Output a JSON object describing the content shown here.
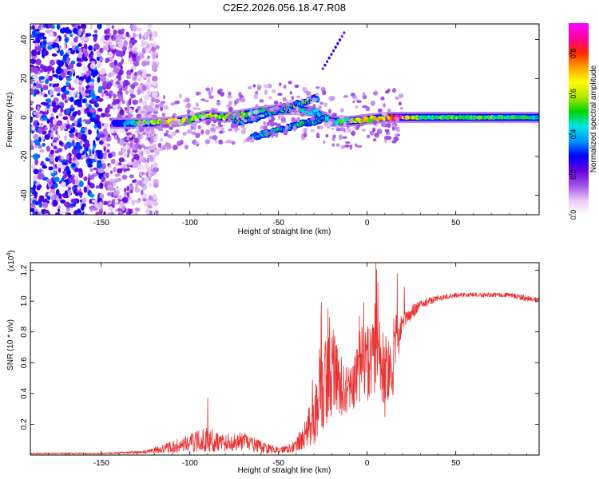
{
  "figure": {
    "title": "C2E2.2026.056.18.47.R08"
  },
  "chart_data": [
    {
      "type": "heatmap",
      "name": "spectrogram",
      "xlabel": "Height of straight line (km)",
      "ylabel": "Frequency (Hz)",
      "xlim": [
        -190,
        97
      ],
      "ylim": [
        -50,
        48
      ],
      "xticks": [
        -150,
        -100,
        -50,
        0,
        50
      ],
      "yticks": [
        -40,
        -20,
        0,
        20,
        40
      ],
      "colorbar": {
        "label": "Normalized spectral amplitude",
        "range": [
          0,
          0.95
        ],
        "ticks": [
          0.0,
          0.2,
          0.4,
          0.6,
          0.8
        ],
        "colors": [
          "#ffffff",
          "#e6c8f5",
          "#a050e6",
          "#6400e0",
          "#0000ff",
          "#0096ff",
          "#00e6e6",
          "#00d200",
          "#b4e600",
          "#ffff00",
          "#ffa000",
          "#ff2800",
          "#ff00a0",
          "#ff00ff"
        ]
      },
      "features": {
        "noise_region_x": [
          -190,
          -130
        ],
        "main_ridge": {
          "x": [
            -143,
            -125,
            -110,
            -100,
            -90,
            -80,
            -70,
            -60,
            -50,
            -40,
            -30,
            -20,
            -10,
            0,
            10,
            20,
            30,
            50,
            70,
            97
          ],
          "freq": [
            -3,
            -3,
            -2.5,
            -1,
            1,
            0,
            1.5,
            3,
            4,
            4,
            3,
            -2,
            -2,
            -1,
            0,
            0,
            0,
            0,
            0,
            0
          ],
          "amplitude": [
            0.3,
            0.55,
            0.7,
            0.6,
            0.65,
            0.6,
            0.55,
            0.5,
            0.55,
            0.5,
            0.45,
            0.5,
            0.6,
            0.7,
            0.75,
            0.9,
            0.5,
            0.55,
            0.55,
            0.5
          ]
        },
        "upper_branch": {
          "x": [
            -75,
            -65,
            -55,
            -45,
            -35,
            -28
          ],
          "freq": [
            -3,
            -1,
            2,
            5,
            8,
            10
          ]
        },
        "lower_branch": {
          "x": [
            -65,
            -55,
            -45,
            -35,
            -25
          ],
          "freq": [
            -10,
            -8,
            -5,
            -3,
            -1
          ]
        },
        "tail_branch": {
          "x": [
            -25,
            -12
          ],
          "freq": [
            25,
            45
          ]
        }
      }
    },
    {
      "type": "line",
      "name": "snr",
      "xlabel": "Height of straight line (km)",
      "ylabel": "SNR (10 * v/v)",
      "y_multiplier": "(x10",
      "y_multiplier_exp": "4",
      "y_multiplier_close": ")",
      "xlim": [
        -190,
        97
      ],
      "ylim": [
        0,
        1.25
      ],
      "xticks": [
        -150,
        -100,
        -50,
        0,
        50
      ],
      "yticks": [
        0.2,
        0.4,
        0.6,
        0.8,
        1.0,
        1.2
      ],
      "ytick_labels": [
        "0.2",
        "0.4",
        "0.6",
        "0.8",
        "1.0",
        "1.2"
      ],
      "color": "#e83232",
      "series_envelope": {
        "x": [
          -190,
          -150,
          -125,
          -110,
          -100,
          -90,
          -80,
          -70,
          -60,
          -50,
          -40,
          -35,
          -30,
          -25,
          -20,
          -15,
          -10,
          -5,
          0,
          5,
          10,
          15,
          20,
          25,
          30,
          40,
          50,
          60,
          70,
          80,
          90,
          97
        ],
        "y": [
          0.01,
          0.01,
          0.02,
          0.05,
          0.08,
          0.1,
          0.08,
          0.09,
          0.05,
          0.03,
          0.06,
          0.12,
          0.25,
          0.45,
          0.55,
          0.45,
          0.4,
          0.55,
          0.6,
          0.7,
          0.55,
          0.6,
          0.88,
          0.92,
          0.98,
          1.02,
          1.04,
          1.04,
          1.04,
          1.04,
          1.02,
          1.0
        ],
        "noise": [
          0.005,
          0.005,
          0.01,
          0.04,
          0.06,
          0.08,
          0.06,
          0.06,
          0.04,
          0.02,
          0.04,
          0.1,
          0.2,
          0.3,
          0.3,
          0.2,
          0.15,
          0.25,
          0.3,
          0.3,
          0.25,
          0.2,
          0.06,
          0.05,
          0.03,
          0.02,
          0.015,
          0.015,
          0.015,
          0.015,
          0.02,
          0.02
        ]
      },
      "spikes": [
        {
          "x": -90,
          "y": 0.37
        },
        {
          "x": -26,
          "y": 0.9
        },
        {
          "x": -22,
          "y": 0.95
        },
        {
          "x": 5,
          "y": 1.25
        },
        {
          "x": 6,
          "y": 1.12
        },
        {
          "x": 17,
          "y": 1.18
        },
        {
          "x": 21,
          "y": 1.09
        },
        {
          "x": 10,
          "y": 0.25
        }
      ]
    }
  ]
}
